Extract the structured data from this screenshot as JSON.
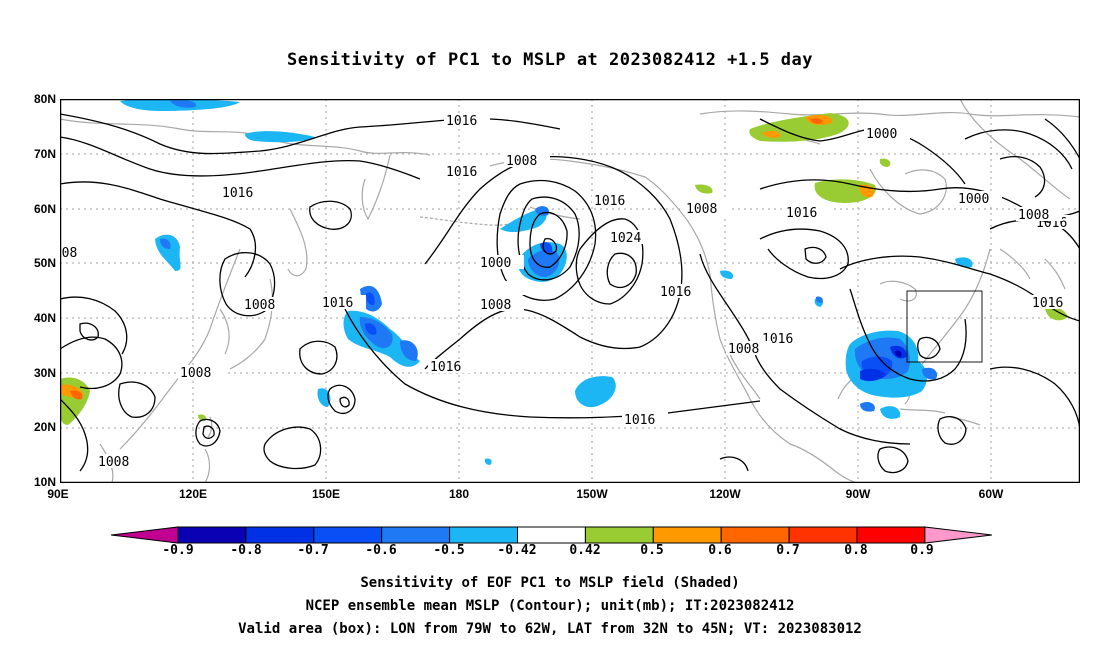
{
  "title": "Sensitivity of PC1 to MSLP at 2023082412 +1.5 day",
  "lat_labels": [
    "80N",
    "70N",
    "60N",
    "50N",
    "40N",
    "30N",
    "20N",
    "10N"
  ],
  "lon_labels": [
    "90E",
    "120E",
    "150E",
    "180",
    "150W",
    "120W",
    "90W",
    "60W"
  ],
  "contour_labels": [
    "1016",
    "1016",
    "1016",
    "1016",
    "1016",
    "1016",
    "1016",
    "1016",
    "1016",
    "1016",
    "1016",
    "1016",
    "1024",
    "1008",
    "1008",
    "1008",
    "1008",
    "1008",
    "1008",
    "1008",
    "1008",
    "1008",
    "1000",
    "1000",
    "1000",
    "1000"
  ],
  "colorbar": {
    "labels": [
      "-0.9",
      "-0.8",
      "-0.7",
      "-0.6",
      "-0.5",
      "-0.42",
      "0.42",
      "0.5",
      "0.6",
      "0.7",
      "0.8",
      "0.9"
    ],
    "colors": [
      "#c00090",
      "#0a00b4",
      "#0031e6",
      "#0a4ef6",
      "#1f78f4",
      "#1cb6f5",
      "#ffffff",
      "#99cc33",
      "#ff9900",
      "#ff6600",
      "#ff3300",
      "#ff0000",
      "#ff99cc"
    ]
  },
  "footer": {
    "line1": "Sensitivity of EOF PC1 to MSLP field (Shaded)",
    "line2": "NCEP ensemble mean MSLP (Contour); unit(mb); IT:2023082412",
    "line3": "Valid area (box): LON from 79W to 62W, LAT from 32N to 45N; VT: 2023083012"
  },
  "colors": {
    "coast": "#a8a8a8",
    "contour": "#000000",
    "grid": "#a0a0a0"
  }
}
